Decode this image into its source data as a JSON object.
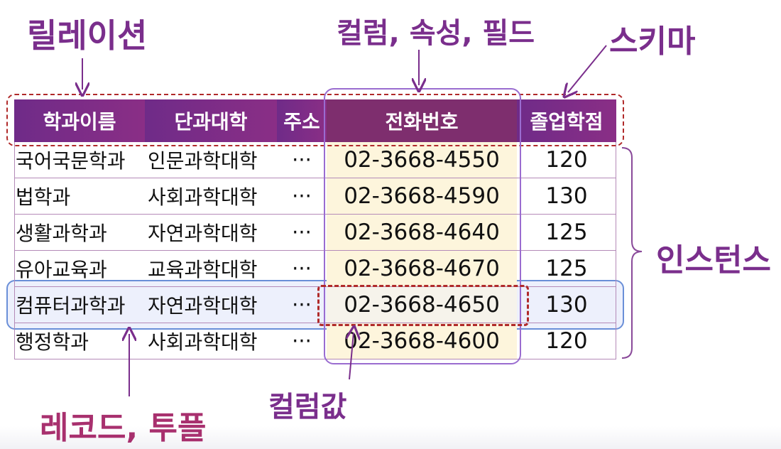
{
  "labels": {
    "relation": "릴레이션",
    "column": "컬럼, 속성, 필드",
    "schema": "스키마",
    "instance": "인스턴스",
    "column_value": "컬럼값",
    "record": "레코드, 투플"
  },
  "table": {
    "headers": [
      "학과이름",
      "단과대학",
      "주소",
      "전화번호",
      "졸업학점"
    ],
    "rows": [
      [
        "국어국문학과",
        "인문과학대학",
        "···",
        "02-3668-4550",
        "120"
      ],
      [
        "법학과",
        "사회과학대학",
        "···",
        "02-3668-4590",
        "130"
      ],
      [
        "생활과학과",
        "자연과학대학",
        "···",
        "02-3668-4640",
        "125"
      ],
      [
        "유아교육과",
        "교육과학대학",
        "···",
        "02-3668-4670",
        "125"
      ],
      [
        "컴퓨터과학과",
        "자연과학대학",
        "···",
        "02-3668-4650",
        "130"
      ],
      [
        "행정학과",
        "사회과학대학",
        "···",
        "02-3668-4600",
        "120"
      ]
    ]
  },
  "colors": {
    "header": "#7a2e8c",
    "schema_border": "#b02a2a",
    "column_border": "#9a6cd0",
    "record_border": "#6a8fd8",
    "column_fill": "#fdf5dc"
  }
}
